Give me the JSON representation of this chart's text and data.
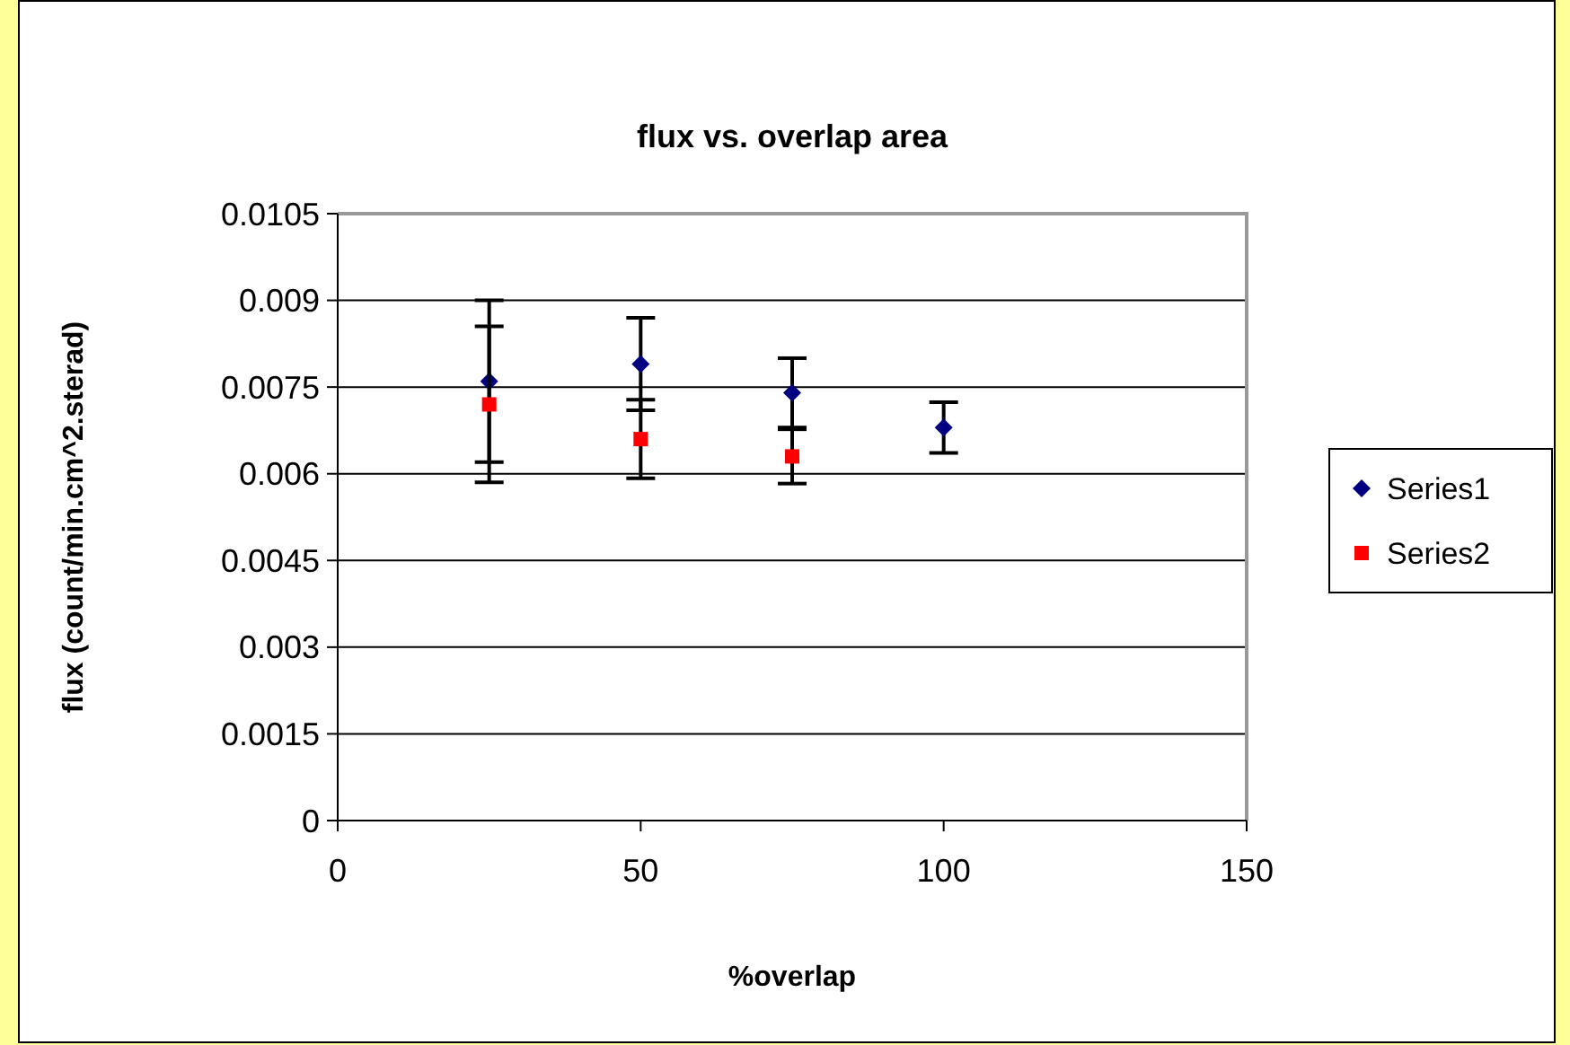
{
  "chart_data": {
    "type": "scatter",
    "title": "flux vs. overlap area",
    "xlabel": "%overlap",
    "ylabel": "flux (count/min.cm^2.sterad)",
    "xlim": [
      0,
      150
    ],
    "xticks": [
      0,
      50,
      100,
      150
    ],
    "ylim": [
      0,
      0.0105
    ],
    "yticks": [
      0,
      0.0015,
      0.003,
      0.0045,
      0.006,
      0.0075,
      0.009,
      0.0105
    ],
    "grid": "y",
    "legend": "right",
    "series": [
      {
        "name": "Series1",
        "color": "#000080",
        "marker": "diamond",
        "x": [
          25,
          50,
          75,
          100
        ],
        "values": [
          0.0076,
          0.0079,
          0.0074,
          0.0068
        ],
        "errors": [
          0.0014,
          0.0008,
          0.0006,
          0.00044
        ]
      },
      {
        "name": "Series2",
        "color": "#ff0000",
        "marker": "square",
        "x": [
          25,
          50,
          75
        ],
        "values": [
          0.0072,
          0.0066,
          0.0063
        ],
        "errors": [
          0.00135,
          0.00068,
          0.00047
        ]
      }
    ]
  }
}
